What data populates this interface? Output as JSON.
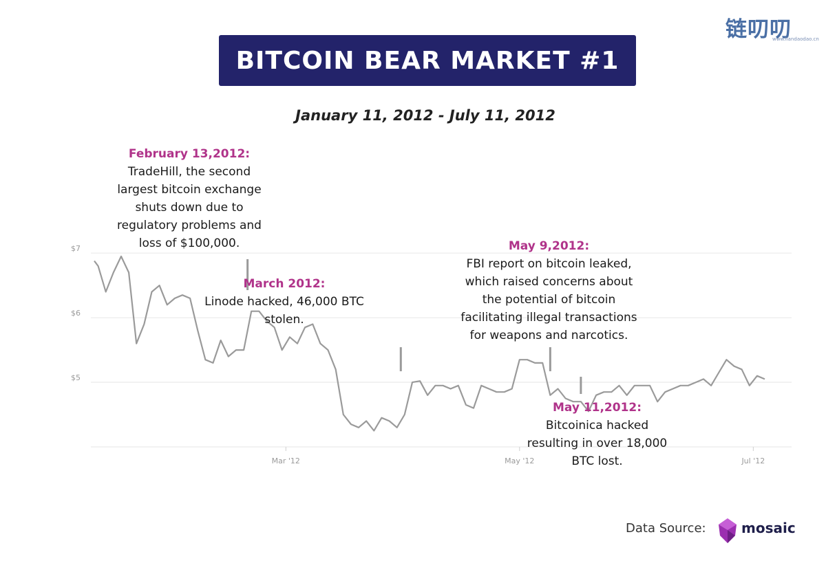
{
  "title": "BITCOIN BEAR MARKET #1",
  "subtitle": "January 11, 2012 - July 11, 2012",
  "corner_logo": {
    "text": "链叨叨",
    "url": "www.liandaodao.cn"
  },
  "annotations": [
    {
      "date": "February 13,2012:",
      "body": "TradeHill, the second\nlargest bitcoin exchange\nshuts down due to\nregulatory problems and\nloss of $100,000."
    },
    {
      "date": "March 2012:",
      "body": "Linode hacked, 46,000 BTC\nstolen."
    },
    {
      "date": "May 9,2012:",
      "body": "FBI report on bitcoin leaked,\nwhich raised concerns about\nthe potential of bitcoin\nfacilitating illegal transactions\nfor weapons and narcotics."
    },
    {
      "date": "May 11,2012:",
      "body": "Bitcoinica hacked\nresulting in over 18,000\nBTC lost."
    }
  ],
  "footer": {
    "label": "Data Source:",
    "brand": "mosaic"
  },
  "colors": {
    "title_bg": "#23236a",
    "annotation_date": "#b0338a",
    "line": "#9a9a9a",
    "grid": "#e6e6e6",
    "brand_gem": "#9b2fb0"
  },
  "chart_data": {
    "type": "line",
    "title": "BITCOIN BEAR MARKET #1",
    "subtitle": "January 11, 2012 - July 11, 2012",
    "xlabel": "",
    "ylabel": "",
    "y_ticks": [
      {
        "value": 5,
        "label": "$5"
      },
      {
        "value": 6,
        "label": "$6"
      },
      {
        "value": 7,
        "label": "$7"
      }
    ],
    "x_ticks": [
      {
        "date": "2012-03-01",
        "label": "Mar '12"
      },
      {
        "date": "2012-05-01",
        "label": "May '12"
      },
      {
        "date": "2012-07-01",
        "label": "Jul '12"
      }
    ],
    "x_range": [
      "2012-01-11",
      "2012-07-11"
    ],
    "ylim": [
      4.0,
      7.3
    ],
    "grid": "horizontal",
    "series": [
      {
        "values": [
          [
            "2012-01-11",
            6.88
          ],
          [
            "2012-01-12",
            6.8
          ],
          [
            "2012-01-14",
            6.4
          ],
          [
            "2012-01-16",
            6.7
          ],
          [
            "2012-01-18",
            6.95
          ],
          [
            "2012-01-20",
            6.7
          ],
          [
            "2012-01-22",
            5.6
          ],
          [
            "2012-01-24",
            5.9
          ],
          [
            "2012-01-26",
            6.4
          ],
          [
            "2012-01-28",
            6.5
          ],
          [
            "2012-01-30",
            6.2
          ],
          [
            "2012-02-01",
            6.3
          ],
          [
            "2012-02-03",
            6.35
          ],
          [
            "2012-02-05",
            6.3
          ],
          [
            "2012-02-07",
            5.8
          ],
          [
            "2012-02-09",
            5.35
          ],
          [
            "2012-02-11",
            5.3
          ],
          [
            "2012-02-13",
            5.65
          ],
          [
            "2012-02-15",
            5.4
          ],
          [
            "2012-02-17",
            5.5
          ],
          [
            "2012-02-19",
            5.5
          ],
          [
            "2012-02-21",
            6.1
          ],
          [
            "2012-02-23",
            6.1
          ],
          [
            "2012-02-25",
            5.95
          ],
          [
            "2012-02-27",
            5.85
          ],
          [
            "2012-02-29",
            5.5
          ],
          [
            "2012-03-02",
            5.7
          ],
          [
            "2012-03-04",
            5.6
          ],
          [
            "2012-03-06",
            5.85
          ],
          [
            "2012-03-08",
            5.9
          ],
          [
            "2012-03-10",
            5.6
          ],
          [
            "2012-03-12",
            5.5
          ],
          [
            "2012-03-14",
            5.2
          ],
          [
            "2012-03-16",
            4.5
          ],
          [
            "2012-03-18",
            4.35
          ],
          [
            "2012-03-20",
            4.3
          ],
          [
            "2012-03-22",
            4.4
          ],
          [
            "2012-03-24",
            4.25
          ],
          [
            "2012-03-26",
            4.45
          ],
          [
            "2012-03-28",
            4.4
          ],
          [
            "2012-03-30",
            4.3
          ],
          [
            "2012-04-01",
            4.5
          ],
          [
            "2012-04-03",
            5.0
          ],
          [
            "2012-04-05",
            5.02
          ],
          [
            "2012-04-07",
            4.8
          ],
          [
            "2012-04-09",
            4.95
          ],
          [
            "2012-04-11",
            4.95
          ],
          [
            "2012-04-13",
            4.9
          ],
          [
            "2012-04-15",
            4.95
          ],
          [
            "2012-04-17",
            4.65
          ],
          [
            "2012-04-19",
            4.6
          ],
          [
            "2012-04-21",
            4.95
          ],
          [
            "2012-04-23",
            4.9
          ],
          [
            "2012-04-25",
            4.85
          ],
          [
            "2012-04-27",
            4.85
          ],
          [
            "2012-04-29",
            4.9
          ],
          [
            "2012-05-01",
            5.35
          ],
          [
            "2012-05-03",
            5.35
          ],
          [
            "2012-05-05",
            5.3
          ],
          [
            "2012-05-07",
            5.3
          ],
          [
            "2012-05-09",
            4.8
          ],
          [
            "2012-05-11",
            4.9
          ],
          [
            "2012-05-13",
            4.75
          ],
          [
            "2012-05-15",
            4.7
          ],
          [
            "2012-05-17",
            4.7
          ],
          [
            "2012-05-19",
            4.55
          ],
          [
            "2012-05-21",
            4.8
          ],
          [
            "2012-05-23",
            4.85
          ],
          [
            "2012-05-25",
            4.85
          ],
          [
            "2012-05-27",
            4.95
          ],
          [
            "2012-05-29",
            4.8
          ],
          [
            "2012-05-31",
            4.95
          ],
          [
            "2012-06-02",
            4.95
          ],
          [
            "2012-06-04",
            4.95
          ],
          [
            "2012-06-06",
            4.7
          ],
          [
            "2012-06-08",
            4.85
          ],
          [
            "2012-06-10",
            4.9
          ],
          [
            "2012-06-12",
            4.95
          ],
          [
            "2012-06-14",
            4.95
          ],
          [
            "2012-06-16",
            5.0
          ],
          [
            "2012-06-18",
            5.05
          ],
          [
            "2012-06-20",
            4.95
          ],
          [
            "2012-06-22",
            5.15
          ],
          [
            "2012-06-24",
            5.35
          ],
          [
            "2012-06-26",
            5.25
          ],
          [
            "2012-06-28",
            5.2
          ],
          [
            "2012-06-30",
            4.95
          ],
          [
            "2012-07-02",
            5.1
          ],
          [
            "2012-07-04",
            5.05
          ]
        ]
      }
    ]
  }
}
